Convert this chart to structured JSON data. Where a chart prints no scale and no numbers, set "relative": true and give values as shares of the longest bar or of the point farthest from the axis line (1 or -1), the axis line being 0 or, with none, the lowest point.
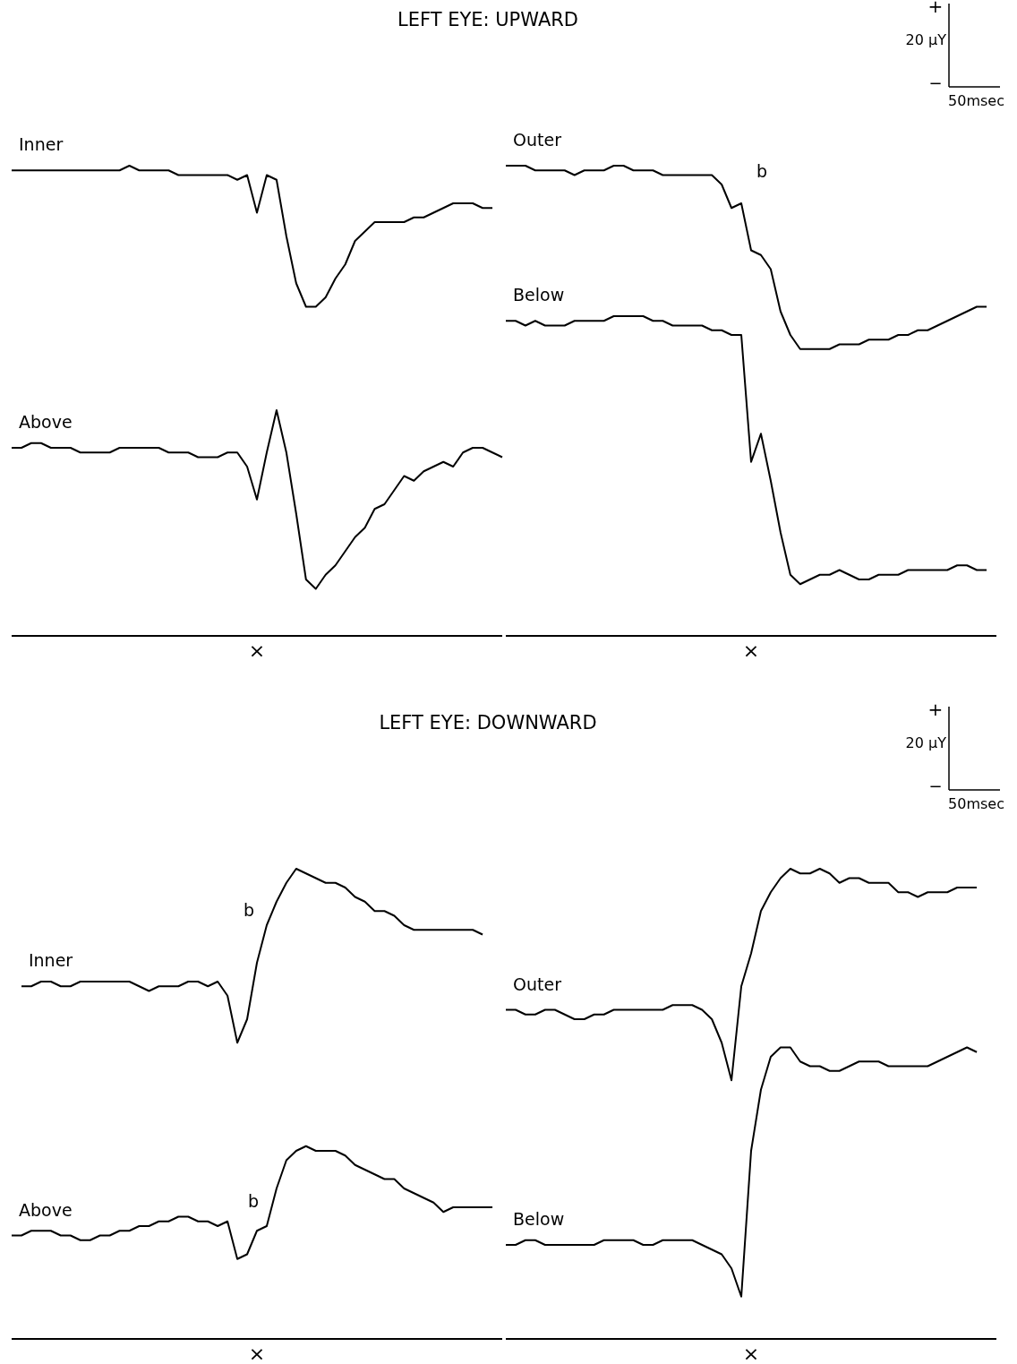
{
  "chart_data": [
    {
      "type": "line",
      "title": "LEFT EYE: UPWARD",
      "relative": true,
      "categories": [
        null,
        null,
        null,
        null,
        null,
        null,
        null,
        null,
        null,
        null,
        null,
        null,
        null,
        null,
        null,
        null,
        null,
        null,
        null,
        null,
        null,
        null,
        null,
        null,
        null,
        null,
        null,
        null,
        null,
        null,
        null,
        null,
        null,
        null,
        null,
        null,
        null,
        null,
        null,
        null,
        null,
        null,
        null,
        null,
        null,
        null,
        null,
        null,
        null,
        null,
        null
      ],
      "annotations": [
        "×"
      ],
      "series": [
        {
          "name": "Inner",
          "color": "#000000",
          "values": [
            0.99,
            0.99,
            0.99,
            0.99,
            0.99,
            0.99,
            0.99,
            0.99,
            0.99,
            0.99,
            0.99,
            0.99,
            1,
            0.99,
            0.99,
            0.99,
            0.99,
            0.98,
            0.98,
            0.98,
            0.98,
            0.98,
            0.98,
            0.97,
            0.98,
            0.9,
            0.98,
            0.97,
            0.85,
            0.75,
            0.7,
            0.7,
            0.72,
            0.76,
            0.79,
            0.84,
            0.86,
            0.88,
            0.88,
            0.88,
            0.88,
            0.89,
            0.89,
            0.9,
            0.91,
            0.92,
            0.92,
            0.92,
            0.91,
            0.91,
            null
          ]
        },
        {
          "name": "Above",
          "color": "#000000",
          "values": [
            0.4,
            0.4,
            0.41,
            0.41,
            0.4,
            0.4,
            0.4,
            0.39,
            0.39,
            0.39,
            0.39,
            0.4,
            0.4,
            0.4,
            0.4,
            0.4,
            0.39,
            0.39,
            0.39,
            0.38,
            0.38,
            0.38,
            0.39,
            0.39,
            0.36,
            0.29,
            0.39,
            0.48,
            0.39,
            0.26,
            0.12,
            0.1,
            0.13,
            0.15,
            0.18,
            0.21,
            0.23,
            0.27,
            0.28,
            0.31,
            0.34,
            0.33,
            0.35,
            0.36,
            0.37,
            0.36,
            0.39,
            0.4,
            0.4,
            0.39,
            0.38
          ]
        }
      ]
    },
    {
      "type": "line",
      "relative": true,
      "categories": [
        null,
        null,
        null,
        null,
        null,
        null,
        null,
        null,
        null,
        null,
        null,
        null,
        null,
        null,
        null,
        null,
        null,
        null,
        null,
        null,
        null,
        null,
        null,
        null,
        null,
        null,
        null,
        null,
        null,
        null,
        null,
        null,
        null,
        null,
        null,
        null,
        null,
        null,
        null,
        null,
        null,
        null,
        null,
        null,
        null,
        null,
        null,
        null,
        null,
        null,
        null
      ],
      "annotations": [
        "+",
        "20 µY",
        "−",
        "50msec",
        "b",
        "×"
      ],
      "series": [
        {
          "name": "Outer",
          "color": "#000000",
          "values": [
            1,
            1,
            1,
            0.99,
            0.99,
            0.99,
            0.99,
            0.98,
            0.99,
            0.99,
            0.99,
            1,
            1,
            0.99,
            0.99,
            0.99,
            0.98,
            0.98,
            0.98,
            0.98,
            0.98,
            0.98,
            0.96,
            0.91,
            0.92,
            0.82,
            0.81,
            0.78,
            0.69,
            0.64,
            0.61,
            0.61,
            0.61,
            0.61,
            0.62,
            0.62,
            0.62,
            0.63,
            0.63,
            0.63,
            0.64,
            0.64,
            0.65,
            0.65,
            0.66,
            0.67,
            0.68,
            0.69,
            0.7,
            0.7,
            null
          ]
        },
        {
          "name": "Below",
          "color": "#000000",
          "values": [
            0.67,
            0.67,
            0.66,
            0.67,
            0.66,
            0.66,
            0.66,
            0.67,
            0.67,
            0.67,
            0.67,
            0.68,
            0.68,
            0.68,
            0.68,
            0.67,
            0.67,
            0.66,
            0.66,
            0.66,
            0.66,
            0.65,
            0.65,
            0.64,
            0.64,
            0.37,
            0.43,
            0.33,
            0.22,
            0.13,
            0.11,
            0.12,
            0.13,
            0.13,
            0.14,
            0.13,
            0.12,
            0.12,
            0.13,
            0.13,
            0.13,
            0.14,
            0.14,
            0.14,
            0.14,
            0.14,
            0.15,
            0.15,
            0.14,
            0.14,
            null
          ]
        }
      ]
    },
    {
      "type": "line",
      "title": "LEFT EYE: DOWNWARD",
      "relative": true,
      "categories": [
        null,
        null,
        null,
        null,
        null,
        null,
        null,
        null,
        null,
        null,
        null,
        null,
        null,
        null,
        null,
        null,
        null,
        null,
        null,
        null,
        null,
        null,
        null,
        null,
        null,
        null,
        null,
        null,
        null,
        null,
        null,
        null,
        null,
        null,
        null,
        null,
        null,
        null,
        null,
        null,
        null,
        null,
        null,
        null,
        null,
        null,
        null,
        null,
        null,
        null,
        null
      ],
      "annotations": [
        "b",
        "b",
        "×"
      ],
      "series": [
        {
          "name": "Inner",
          "color": "#000000",
          "values": [
            null,
            0.75,
            0.75,
            0.76,
            0.76,
            0.75,
            0.75,
            0.76,
            0.76,
            0.76,
            0.76,
            0.76,
            0.76,
            0.75,
            0.74,
            0.75,
            0.75,
            0.75,
            0.76,
            0.76,
            0.75,
            0.76,
            0.73,
            0.63,
            0.68,
            0.8,
            0.88,
            0.93,
            0.97,
            1,
            0.99,
            0.98,
            0.97,
            0.97,
            0.96,
            0.94,
            0.93,
            0.91,
            0.91,
            0.9,
            0.88,
            0.87,
            0.87,
            0.87,
            0.87,
            0.87,
            0.87,
            0.87,
            0.86,
            null,
            null
          ]
        },
        {
          "name": "Above",
          "color": "#000000",
          "values": [
            0.22,
            0.22,
            0.23,
            0.23,
            0.23,
            0.22,
            0.22,
            0.21,
            0.21,
            0.22,
            0.22,
            0.23,
            0.23,
            0.24,
            0.24,
            0.25,
            0.25,
            0.26,
            0.26,
            0.25,
            0.25,
            0.24,
            0.25,
            0.17,
            0.18,
            0.23,
            0.24,
            0.32,
            0.38,
            0.4,
            0.41,
            0.4,
            0.4,
            0.4,
            0.39,
            0.37,
            0.36,
            0.35,
            0.34,
            0.34,
            0.32,
            0.31,
            0.3,
            0.29,
            0.27,
            0.28,
            0.28,
            0.28,
            0.28,
            0.28,
            null
          ]
        }
      ]
    },
    {
      "type": "line",
      "relative": true,
      "categories": [
        null,
        null,
        null,
        null,
        null,
        null,
        null,
        null,
        null,
        null,
        null,
        null,
        null,
        null,
        null,
        null,
        null,
        null,
        null,
        null,
        null,
        null,
        null,
        null,
        null,
        null,
        null,
        null,
        null,
        null,
        null,
        null,
        null,
        null,
        null,
        null,
        null,
        null,
        null,
        null,
        null,
        null,
        null,
        null,
        null,
        null,
        null,
        null,
        null,
        null,
        null
      ],
      "annotations": [
        "+",
        "20 µY",
        "−",
        "50msec",
        "×"
      ],
      "series": [
        {
          "name": "Outer",
          "color": "#000000",
          "values": [
            0.7,
            0.7,
            0.69,
            0.69,
            0.7,
            0.7,
            0.69,
            0.68,
            0.68,
            0.69,
            0.69,
            0.7,
            0.7,
            0.7,
            0.7,
            0.7,
            0.7,
            0.71,
            0.71,
            0.71,
            0.7,
            0.68,
            0.63,
            0.55,
            0.75,
            0.82,
            0.91,
            0.95,
            0.98,
            1,
            0.99,
            0.99,
            1,
            0.99,
            0.97,
            0.98,
            0.98,
            0.97,
            0.97,
            0.97,
            0.95,
            0.95,
            0.94,
            0.95,
            0.95,
            0.95,
            0.96,
            0.96,
            0.96,
            null,
            null
          ]
        },
        {
          "name": "Below",
          "color": "#000000",
          "values": [
            0.2,
            0.2,
            0.21,
            0.21,
            0.2,
            0.2,
            0.2,
            0.2,
            0.2,
            0.2,
            0.21,
            0.21,
            0.21,
            0.21,
            0.2,
            0.2,
            0.21,
            0.21,
            0.21,
            0.21,
            0.2,
            0.19,
            0.18,
            0.15,
            0.09,
            0.4,
            0.53,
            0.6,
            0.62,
            0.62,
            0.59,
            0.58,
            0.58,
            0.57,
            0.57,
            0.58,
            0.59,
            0.59,
            0.59,
            0.58,
            0.58,
            0.58,
            0.58,
            0.58,
            0.59,
            0.6,
            0.61,
            0.62,
            0.61,
            null,
            null
          ]
        }
      ]
    }
  ]
}
